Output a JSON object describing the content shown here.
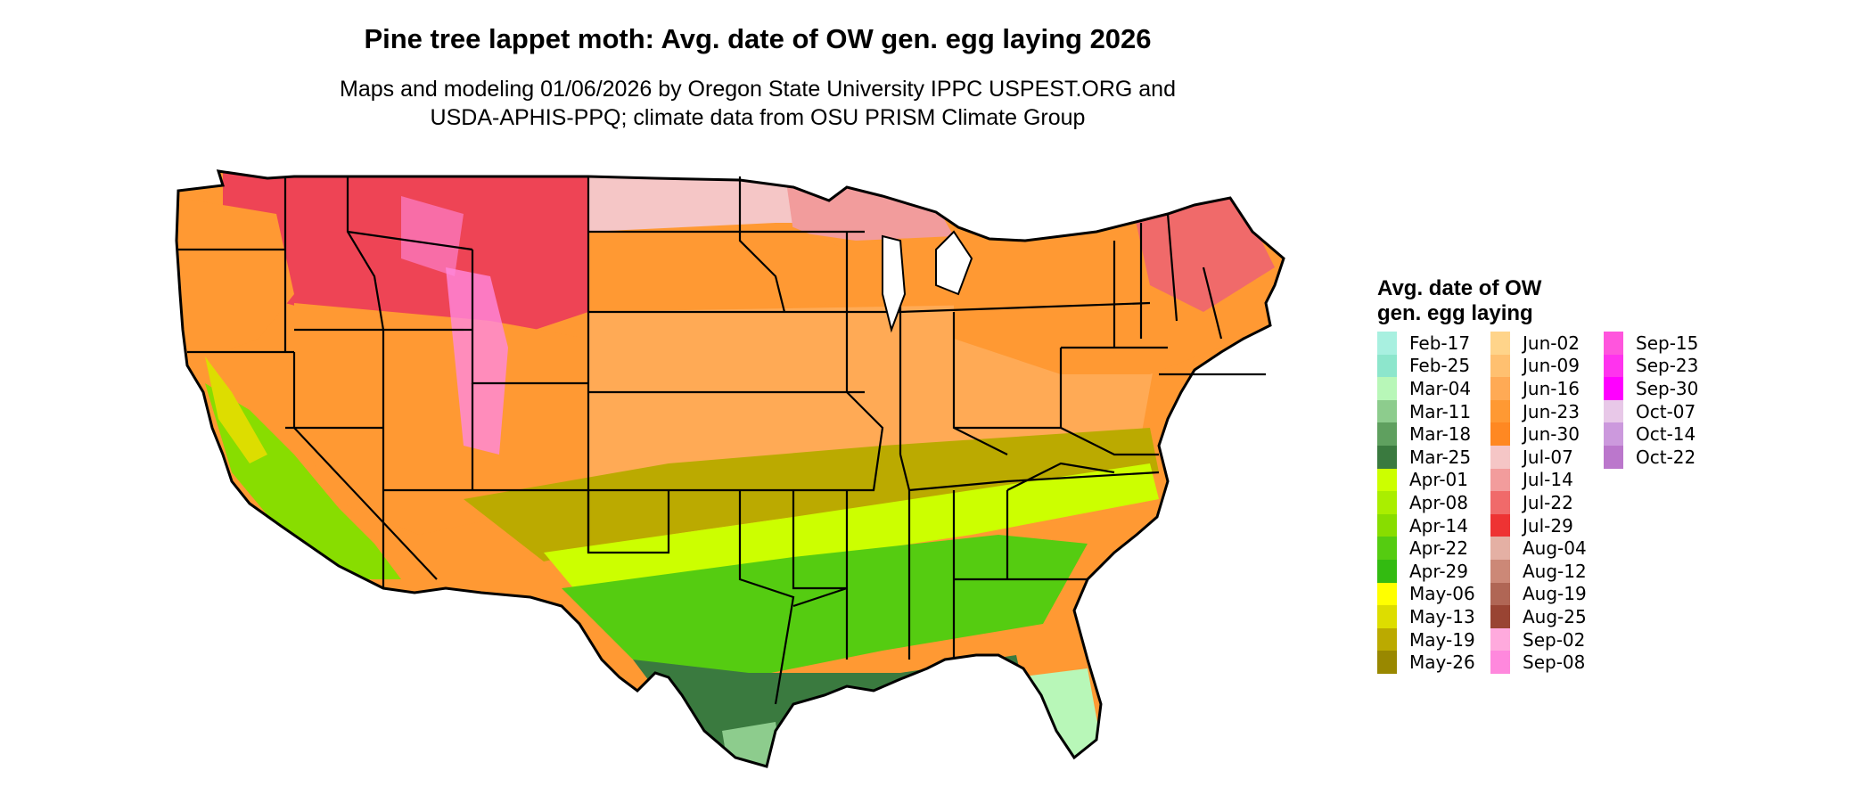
{
  "title": "Pine tree lappet moth: Avg. date of OW gen. egg laying 2026",
  "subtitle_lines": [
    "Maps and modeling 01/06/2026 by Oregon State University IPPC USPEST.ORG and",
    "USDA-APHIS-PPQ; climate data from OSU PRISM Climate Group"
  ],
  "legend": {
    "title_lines": [
      "Avg. date of OW",
      "gen. egg laying"
    ],
    "columns": [
      [
        {
          "label": "Feb-17",
          "color": "#a8f0e0"
        },
        {
          "label": "Feb-25",
          "color": "#8de6cc"
        },
        {
          "label": "Mar-04",
          "color": "#b8f7b8"
        },
        {
          "label": "Mar-11",
          "color": "#8dcc8d"
        },
        {
          "label": "Mar-18",
          "color": "#5fa05f"
        },
        {
          "label": "Mar-25",
          "color": "#3a7a3f"
        },
        {
          "label": "Apr-01",
          "color": "#ccff00"
        },
        {
          "label": "Apr-08",
          "color": "#aaee00"
        },
        {
          "label": "Apr-14",
          "color": "#88dd00"
        },
        {
          "label": "Apr-22",
          "color": "#55cc11"
        },
        {
          "label": "Apr-29",
          "color": "#33bb11"
        },
        {
          "label": "May-06",
          "color": "#ffff00"
        },
        {
          "label": "May-13",
          "color": "#dddd00"
        },
        {
          "label": "May-19",
          "color": "#bbaa00"
        },
        {
          "label": "May-26",
          "color": "#998800"
        }
      ],
      [
        {
          "label": "Jun-02",
          "color": "#ffd48a"
        },
        {
          "label": "Jun-09",
          "color": "#ffc070"
        },
        {
          "label": "Jun-16",
          "color": "#ffaa55"
        },
        {
          "label": "Jun-23",
          "color": "#ff9933"
        },
        {
          "label": "Jun-30",
          "color": "#ff8822"
        },
        {
          "label": "Jul-07",
          "color": "#f5c6c6"
        },
        {
          "label": "Jul-14",
          "color": "#f29c9c"
        },
        {
          "label": "Jul-22",
          "color": "#f06a6a"
        },
        {
          "label": "Jul-29",
          "color": "#ee3333"
        },
        {
          "label": "Aug-04",
          "color": "#e4b0a4"
        },
        {
          "label": "Aug-12",
          "color": "#cc8877"
        },
        {
          "label": "Aug-19",
          "color": "#b06655"
        },
        {
          "label": "Aug-25",
          "color": "#994433"
        },
        {
          "label": "Sep-02",
          "color": "#ffaadd"
        },
        {
          "label": "Sep-08",
          "color": "#ff88dd"
        }
      ],
      [
        {
          "label": "Sep-15",
          "color": "#ff55dd"
        },
        {
          "label": "Sep-23",
          "color": "#ff33ee"
        },
        {
          "label": "Sep-30",
          "color": "#ff00ff"
        },
        {
          "label": "Oct-07",
          "color": "#e8c8e8"
        },
        {
          "label": "Oct-14",
          "color": "#cc99dd"
        },
        {
          "label": "Oct-22",
          "color": "#bb77cc"
        }
      ]
    ]
  },
  "map_colors": {
    "northwest": "#ff9933",
    "rockies_high": "#ee4455",
    "rockies_snow": "#ff88dd",
    "northern_plains": "#f5c6c6",
    "central_plains": "#ff9933",
    "midwest": "#ffaa55",
    "south_band": "#bbaa00",
    "gulf_band": "#55cc11",
    "gulf_coast": "#3a7a3f",
    "south_florida": "#b8f7b8",
    "southwest_desert": "#88dd00",
    "great_lakes": "#f29c9c",
    "northeast": "#ff9933",
    "new_england": "#f06a6a",
    "state_lines": "#000000"
  }
}
